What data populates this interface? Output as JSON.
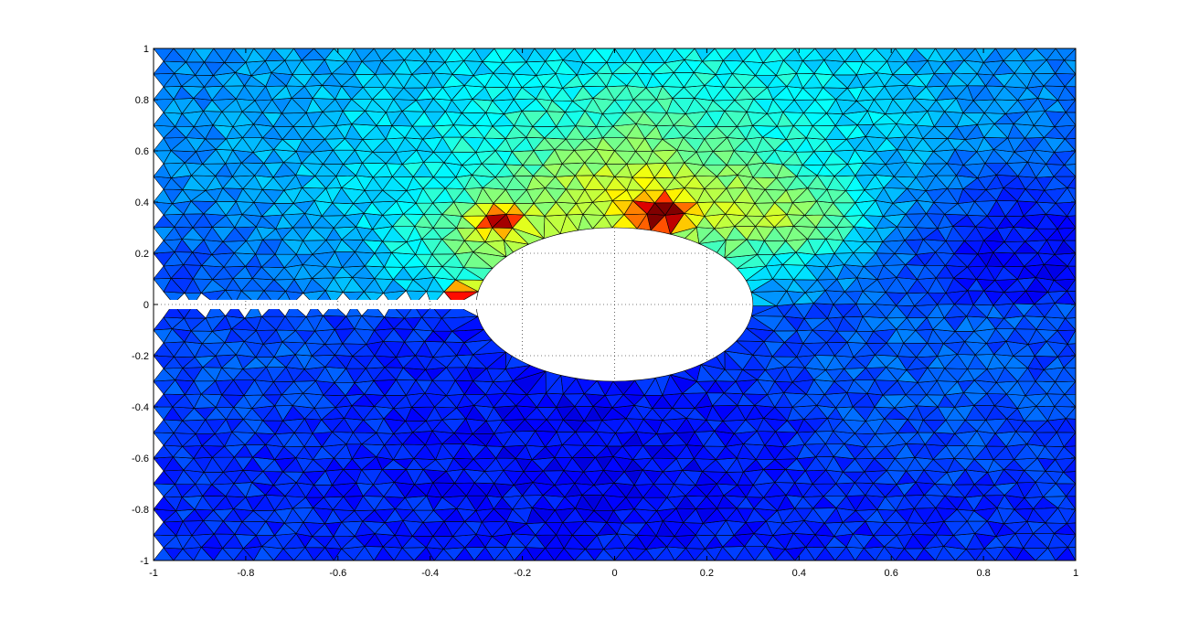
{
  "chart_data": {
    "type": "heatmap",
    "subtype": "triangular-mesh-surface",
    "title": "",
    "xlabel": "",
    "ylabel": "",
    "xlim": [
      -1,
      1
    ],
    "ylim": [
      -1,
      1
    ],
    "x_ticks": [
      -1,
      -0.8,
      -0.6,
      -0.4,
      -0.2,
      0,
      0.2,
      0.4,
      0.6,
      0.8,
      1
    ],
    "y_ticks": [
      -1,
      -0.8,
      -0.6,
      -0.4,
      -0.2,
      0,
      0.2,
      0.4,
      0.6,
      0.8,
      1
    ],
    "x_tick_labels": [
      "-1",
      "-0.8",
      "-0.6",
      "-0.4",
      "-0.2",
      "0",
      "0.2",
      "0.4",
      "0.6",
      "0.8",
      "1"
    ],
    "y_tick_labels": [
      "-1",
      "-0.8",
      "-0.6",
      "-0.4",
      "-0.2",
      "0",
      "0.2",
      "0.4",
      "0.6",
      "0.8",
      "1"
    ],
    "grid": "dotted",
    "colormap": "jet",
    "colormap_stops": [
      "#00008f",
      "#0000ff",
      "#00ffff",
      "#ffff00",
      "#ff0000",
      "#800000"
    ],
    "mesh": {
      "nx": 46,
      "ny": 40,
      "edge_color": "#000000"
    },
    "hole": {
      "shape": "ellipse",
      "center": [
        0,
        0
      ],
      "radius_x": 0.3,
      "radius_y": 0.3
    },
    "slit": {
      "x_from": -1,
      "x_to": -0.3,
      "y_half_width": 0.018
    },
    "field_regions": [
      {
        "note": "upper band",
        "x": [
          -1,
          1
        ],
        "y": [
          0.3,
          1
        ],
        "level": 0.32
      },
      {
        "note": "lower band",
        "x": [
          -1,
          1
        ],
        "y": [
          -1,
          -0.3
        ],
        "level": 0.12
      },
      {
        "note": "hotspot above crack tip",
        "center": [
          0.1,
          0.37
        ],
        "level": 0.85
      },
      {
        "note": "hotspot left of hole",
        "center": [
          -0.25,
          0.33
        ],
        "level": 0.7
      },
      {
        "note": "crack tip",
        "center": [
          -0.32,
          0.03
        ],
        "level": 0.95
      }
    ]
  }
}
